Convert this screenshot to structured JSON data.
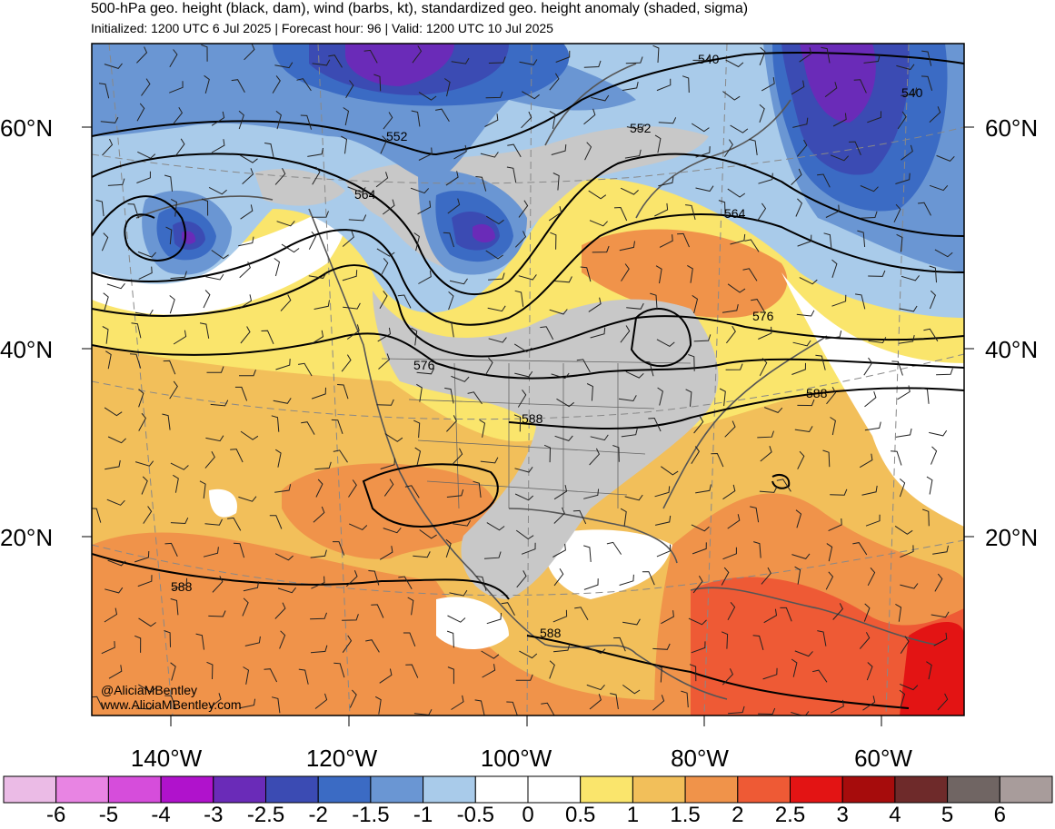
{
  "header": {
    "title": "500-hPa geo. height (black, dam), wind (barbs, kt), standardized geo. height anomaly (shaded, sigma)",
    "subtitle": "Initialized: 1200 UTC 6 Jul 2025 | Forecast hour: 96 | Valid: 1200 UTC 10 Jul 2025"
  },
  "map": {
    "lat_labels": [
      "60°N",
      "40°N",
      "20°N"
    ],
    "lon_labels": [
      "140°W",
      "120°W",
      "100°W",
      "80°W",
      "60°W"
    ],
    "contour_labels": [
      "540",
      "540",
      "552",
      "552",
      "564",
      "564",
      "576",
      "576",
      "588",
      "588",
      "588",
      "588"
    ]
  },
  "colorbar": {
    "ticks": [
      "-6",
      "-5",
      "-4",
      "-3",
      "-2.5",
      "-2",
      "-1.5",
      "-1",
      "-0.5",
      "0",
      "0.5",
      "1",
      "1.5",
      "2",
      "2.5",
      "3",
      "4",
      "5",
      "6"
    ],
    "colors": [
      "#ebbbe6",
      "#e884e3",
      "#d64ddb",
      "#b012cc",
      "#6a2bb8",
      "#3b4bb3",
      "#3b6bc4",
      "#6a96d3",
      "#a9cbea",
      "#ffffff",
      "#ffffff",
      "#fae56c",
      "#f2bf5a",
      "#f0934a",
      "#ee5a35",
      "#e31414",
      "#a60c0c",
      "#6e2a2a",
      "#706563",
      "#a89c9b"
    ]
  },
  "credits": {
    "handle": "@AliciaMBentley",
    "site": "www.AliciaMBentley.com"
  }
}
